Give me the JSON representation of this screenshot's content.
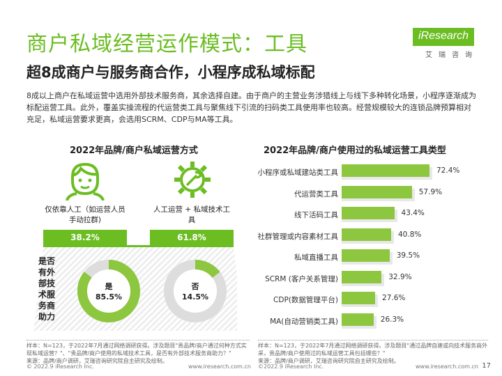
{
  "header": {
    "title": "商户私域经营运作模式：工具",
    "subtitle": "超8成商户与服务商合作，小程序成私域标配",
    "logo_text": "iResearch",
    "logo_sub": "艾瑞咨询"
  },
  "description": "8成以上商户在私域运营中选用外部技术服务商，其余选择自建。由于商户的主营业务涉猎线上与线下多种转化场景，小程序逐渐成为标配运营工具。此外，覆盖实操流程的代运营类工具与聚焦线下引流的扫码类工具使用率也较高。经营规模较大的连锁品牌预算相对充足，私域运营要求更高，会选用SCRM、CDP与MA等工具。",
  "left_panel": {
    "title": "2022年品牌/商户私域运营方式",
    "option_a_label": "仅依靠人工（如运营人员手动拉群)",
    "option_a_value": "38.2%",
    "option_b_label": "人工运营 + 私域技术工具",
    "option_b_value": "61.8%",
    "vertical_label": "是否有外部技术服务商助力",
    "donut_yes_label": "是",
    "donut_yes_value": "85.5%",
    "donut_no_label": "否",
    "donut_no_value": "14.5%",
    "footnote": "样本：N=123，于2022年7月通过网络调研获得。涉及题目\"贵品牌/商户通过何种方式实现私域运营？\"、\"贵品牌/商户使用的私域技术工具，是否有外部技术服务商助力？\"\n来源：品牌/商户调研，艾瑞咨询研究院自主研究及绘制。",
    "copyright": "© 2022.9 iResearch Inc.",
    "website": "www.iresearch.com.cn"
  },
  "chart_data": {
    "type": "bar",
    "title": "2022年品牌/商户使用过的私域运营工具类型",
    "categories": [
      "小程序或私域建站类工具",
      "代运营类工具",
      "线下活码工具",
      "社群管理或内容素材工具",
      "私域直播工具",
      "SCRM (客户关系管理)",
      "CDP(数据管理平台)",
      "MA(自动营销类工具)"
    ],
    "values": [
      72.4,
      57.9,
      43.4,
      40.8,
      39.5,
      32.9,
      27.6,
      26.3
    ],
    "value_labels": [
      "72.4%",
      "57.9%",
      "43.4%",
      "40.8%",
      "39.5%",
      "32.9%",
      "27.6%",
      "26.3%"
    ],
    "xlim": [
      0,
      100
    ],
    "orientation": "horizontal"
  },
  "right_panel": {
    "footnote": "样本：N=123，于2022年7月通过网络调研获得。涉及题目\"通过品牌自建或向技术服务商外采，贵品牌/商户使用过的私域运营工具包括哪些？\"\n来源：品牌/商户调研，艾瑞咨询研究院自主研究及绘制。",
    "copyright": "©2022.9 iResearch Inc.",
    "website": "www.iresearch.com.cn"
  },
  "page_number": "17",
  "colors": {
    "accent": "#6bbd22",
    "bar": "#8dc63f",
    "track": "#e8e8e8"
  }
}
